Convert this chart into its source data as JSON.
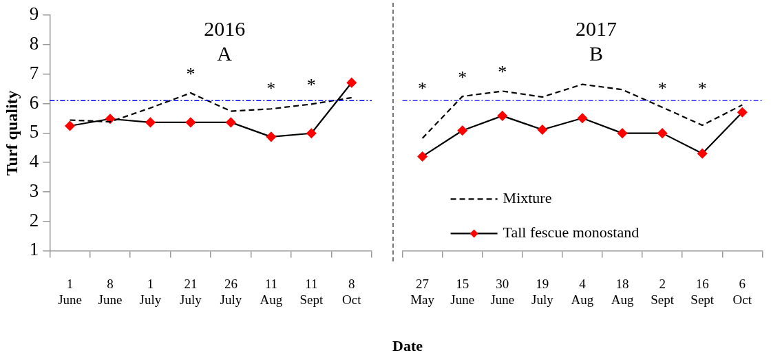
{
  "chart_data": [
    {
      "type": "line",
      "title": "2016",
      "subtitle": "A",
      "ylabel": "Turf quality",
      "categories": [
        "1 June",
        "8 June",
        "1 July",
        "21 July",
        "26 July",
        "11 Aug",
        "11 Sept",
        "8 Oct"
      ],
      "series": [
        {
          "color": "#000000",
          "line_style": "dashed",
          "marker": "none",
          "values": [
            5.44,
            5.38,
            5.85,
            6.36,
            5.74,
            5.82,
            5.98,
            6.2
          ]
        },
        {
          "color": "#000000",
          "line_style": "solid",
          "marker": "diamond",
          "colors": [
            "#ff0000",
            "#ff0000",
            "#ff0000",
            "#ff0000",
            "#ff0000",
            "#ff0000",
            "#ff0000",
            "#ff0000"
          ],
          "values": [
            5.24,
            5.48,
            5.36,
            5.36,
            5.36,
            4.87,
            4.99,
            6.71
          ]
        }
      ],
      "ylim": [
        1,
        9
      ],
      "yticks": [
        1,
        2,
        3,
        4,
        5,
        6,
        7,
        8,
        9
      ],
      "grid": false,
      "legend": false,
      "ref_lines": [
        {
          "axis": "y",
          "value": 6.1,
          "color": "#0000ff",
          "line_style": "dashed"
        }
      ],
      "annotations": [
        "*",
        "*",
        "*"
      ]
    },
    {
      "type": "line",
      "title": "2017",
      "subtitle": "B",
      "xlabel": "Date",
      "categories": [
        "27 May",
        "15 June",
        "30 June",
        "19 July",
        "4 Aug",
        "18 Aug",
        "2 Sept",
        "16 Sept",
        "6 Oct"
      ],
      "series": [
        {
          "name": "Mixture",
          "color": "#000000",
          "line_style": "dashed",
          "marker": "none",
          "values": [
            4.82,
            6.24,
            6.42,
            6.22,
            6.65,
            6.47,
            5.87,
            5.26,
            5.95
          ]
        },
        {
          "name": "Tall fescue monostand",
          "color": "#000000",
          "line_style": "solid",
          "marker": "diamond",
          "colors": [
            "#ff0000",
            "#ff0000",
            "#ff0000",
            "#ff0000",
            "#ff0000",
            "#ff0000",
            "#ff0000",
            "#ff0000",
            "#ff0000"
          ],
          "values": [
            4.2,
            5.08,
            5.58,
            5.11,
            5.5,
            4.99,
            4.99,
            4.3,
            5.7
          ]
        }
      ],
      "ylim": [
        1,
        9
      ],
      "yticks": [
        1,
        2,
        3,
        4,
        5,
        6,
        7,
        8,
        9
      ],
      "tick_labels": "x",
      "grid": false,
      "legend": "bottom left",
      "ref_lines": [
        {
          "axis": "y",
          "value": 6.1,
          "color": "#0000ff",
          "line_style": "dashed"
        }
      ],
      "annotations": [
        "*",
        "*",
        "*",
        "*",
        "*"
      ]
    }
  ]
}
